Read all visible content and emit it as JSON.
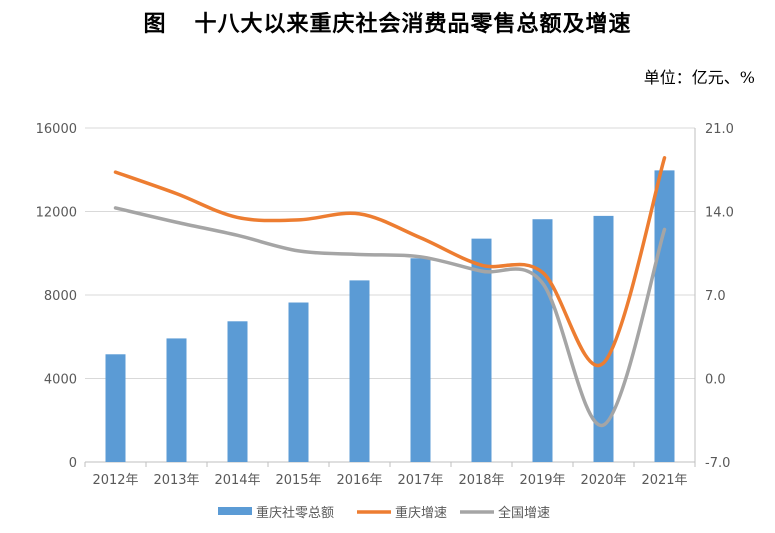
{
  "header": {
    "figure_label": "图",
    "title_text": "十八大以来重庆社会消费品零售总额及增速",
    "unit_text": "单位：亿元、%"
  },
  "chart_data": {
    "type": "bar",
    "categories": [
      "2012年",
      "2013年",
      "2014年",
      "2015年",
      "2016年",
      "2017年",
      "2018年",
      "2019年",
      "2020年",
      "2021年"
    ],
    "series": [
      {
        "name": "重庆社零总额",
        "kind": "bar",
        "axis": "left",
        "color": "#5B9BD5",
        "values": [
          5160,
          5920,
          6740,
          7640,
          8700,
          9760,
          10700,
          11630,
          11790,
          13970
        ]
      },
      {
        "name": "重庆增速",
        "kind": "line",
        "axis": "right",
        "color": "#ED7D31",
        "values": [
          17.3,
          15.5,
          13.5,
          13.3,
          13.8,
          11.8,
          9.5,
          8.9,
          1.3,
          18.5
        ]
      },
      {
        "name": "全国增速",
        "kind": "line",
        "axis": "right",
        "color": "#A5A5A5",
        "values": [
          14.3,
          13.1,
          12.0,
          10.7,
          10.4,
          10.2,
          9.0,
          8.0,
          -3.9,
          12.5
        ]
      }
    ],
    "left_axis": {
      "min": 0,
      "max": 16000,
      "ticks": [
        "0",
        "4000",
        "8000",
        "12000",
        "16000"
      ]
    },
    "right_axis": {
      "min": -7,
      "max": 21,
      "ticks": [
        "-7.0",
        "0.0",
        "7.0",
        "14.0",
        "21.0"
      ]
    },
    "legend_position": "bottom",
    "grid": true
  }
}
